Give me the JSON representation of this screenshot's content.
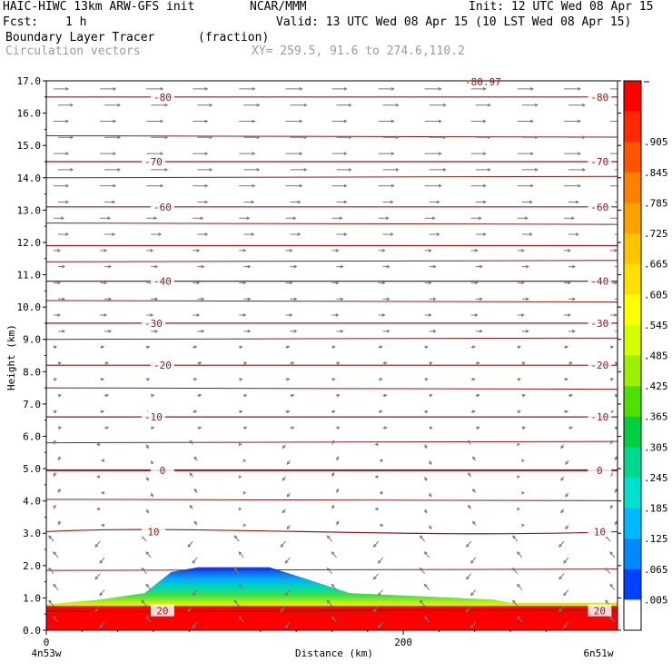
{
  "header": {
    "model": "HAIC-HIWC 13km ARW-GFS init",
    "org": "NCAR/MMM",
    "init": "Init: 12 UTC Wed 08 Apr 15",
    "fcst_label": "Fcst:",
    "fcst_value": "1 h",
    "valid": "Valid: 13 UTC Wed 08 Apr 15 (10 LST Wed 08 Apr 15)",
    "field": "Boundary Layer Tracer",
    "units": "(fraction)",
    "vectors": "Circulation vectors",
    "xy": "XY= 259.5, 91.6 to 274.6,110.2"
  },
  "colors": {
    "isotherm": "#8b1a1a",
    "vector": "#777777"
  },
  "chart_data": {
    "type": "cross-section",
    "title": "Boundary Layer Tracer",
    "xlabel": "Distance (km)",
    "ylabel": "Height (km)",
    "xlim": [
      0,
      320
    ],
    "ylim": [
      0,
      17
    ],
    "x_ticks": [
      {
        "value": 0,
        "label": "0"
      },
      {
        "value": 200,
        "label": "200"
      }
    ],
    "x_end_labels": {
      "left": "4n53w",
      "right": "6n51w"
    },
    "y_ticks": [
      "0.0",
      "1.0",
      "2.0",
      "3.0",
      "4.0",
      "5.0",
      "6.0",
      "7.0",
      "8.0",
      "9.0",
      "10.0",
      "11.0",
      "12.0",
      "13.0",
      "14.0",
      "15.0",
      "16.0",
      "17.0"
    ],
    "colorbar": {
      "labels": [
        ".905",
        ".845",
        ".785",
        ".725",
        ".665",
        ".605",
        ".545",
        ".485",
        ".425",
        ".365",
        ".305",
        ".245",
        ".185",
        ".125",
        ".065",
        ".005"
      ],
      "colors": [
        "#ff0000",
        "#ff2a00",
        "#ff5500",
        "#ff7f00",
        "#ffa200",
        "#ffc400",
        "#ffe000",
        "#ffff00",
        "#d4ff00",
        "#9cf000",
        "#4ee000",
        "#00d040",
        "#00d890",
        "#00e0d0",
        "#00b8ff",
        "#0088ff",
        "#0040ff",
        "#ffffff"
      ]
    },
    "tracer_top_km": [
      {
        "x": 0,
        "y": 0.8
      },
      {
        "x": 30,
        "y": 0.95
      },
      {
        "x": 55,
        "y": 1.15
      },
      {
        "x": 70,
        "y": 1.8
      },
      {
        "x": 85,
        "y": 1.95
      },
      {
        "x": 125,
        "y": 1.95
      },
      {
        "x": 145,
        "y": 1.6
      },
      {
        "x": 170,
        "y": 1.15
      },
      {
        "x": 210,
        "y": 1.05
      },
      {
        "x": 250,
        "y": 0.95
      },
      {
        "x": 260,
        "y": 0.85
      },
      {
        "x": 320,
        "y": 0.85
      }
    ],
    "isotherms": [
      {
        "value": -80,
        "label": "-80",
        "y": 16.5
      },
      {
        "value": -70,
        "label": "-70",
        "y": 14.5
      },
      {
        "value": -60,
        "label": "-60",
        "y": 13.1
      },
      {
        "value": -50,
        "label": "",
        "y": 11.9
      },
      {
        "value": -40,
        "label": "-40",
        "y": 10.8
      },
      {
        "value": -30,
        "label": "-30",
        "y": 9.5
      },
      {
        "value": -20,
        "label": "-20",
        "y": 8.2
      },
      {
        "value": -10,
        "label": "-10",
        "y": 6.6
      },
      {
        "value": 0,
        "label": "0",
        "y": 4.95
      },
      {
        "value": 10,
        "label": "10",
        "y": 3.05
      },
      {
        "value": 20,
        "label": "20",
        "y": 0.6
      }
    ],
    "top_label": "-80.97",
    "secondary_levels_km": [
      17.0,
      15.3,
      14.0,
      12.6,
      11.4,
      10.2,
      9.0,
      7.5,
      5.8,
      4.05,
      1.85
    ]
  }
}
